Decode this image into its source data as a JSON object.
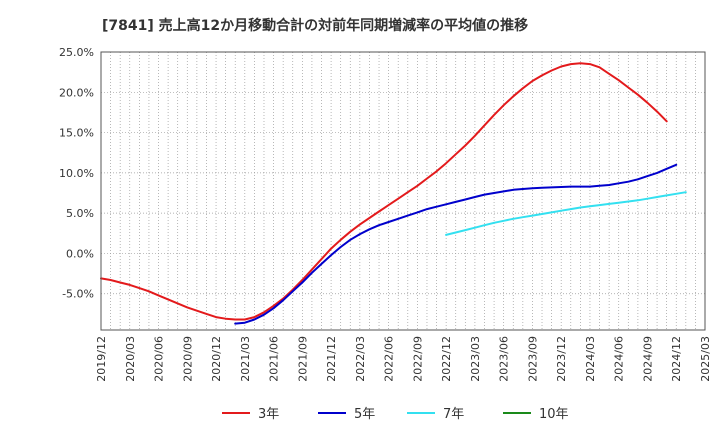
{
  "chart_data": {
    "type": "line",
    "title": "[7841]  売上高12か月移動合計の対前年同期増減率の平均値の推移",
    "xlabel": "",
    "ylabel": "",
    "ylim": [
      -9.5,
      25.0
    ],
    "y_ticks": [
      {
        "value": 25,
        "label": "25.0%"
      },
      {
        "value": 20,
        "label": "20.0%"
      },
      {
        "value": 15,
        "label": "15.0%"
      },
      {
        "value": 10,
        "label": "10.0%"
      },
      {
        "value": 5,
        "label": "5.0%"
      },
      {
        "value": 0,
        "label": "0.0%"
      },
      {
        "value": -5,
        "label": "-5.0%"
      }
    ],
    "x_ticks": [
      "2019/12",
      "2020/03",
      "2020/06",
      "2020/09",
      "2020/12",
      "2021/03",
      "2021/06",
      "2021/09",
      "2021/12",
      "2022/03",
      "2022/06",
      "2022/09",
      "2022/12",
      "2023/03",
      "2023/06",
      "2023/09",
      "2023/12",
      "2024/03",
      "2024/06",
      "2024/09",
      "2024/12",
      "2025/03"
    ],
    "grid": true,
    "legend_position": "bottom",
    "series": [
      {
        "name": "3年",
        "color": "#e31a1c",
        "points": [
          [
            "2019/12",
            -3.1
          ],
          [
            "2020/01",
            -3.3
          ],
          [
            "2020/02",
            -3.6
          ],
          [
            "2020/03",
            -3.9
          ],
          [
            "2020/04",
            -4.3
          ],
          [
            "2020/05",
            -4.7
          ],
          [
            "2020/06",
            -5.2
          ],
          [
            "2020/07",
            -5.7
          ],
          [
            "2020/08",
            -6.2
          ],
          [
            "2020/09",
            -6.7
          ],
          [
            "2020/10",
            -7.1
          ],
          [
            "2020/11",
            -7.5
          ],
          [
            "2020/12",
            -7.9
          ],
          [
            "2021/01",
            -8.1
          ],
          [
            "2021/02",
            -8.2
          ],
          [
            "2021/03",
            -8.2
          ],
          [
            "2021/04",
            -7.9
          ],
          [
            "2021/05",
            -7.3
          ],
          [
            "2021/06",
            -6.5
          ],
          [
            "2021/07",
            -5.6
          ],
          [
            "2021/08",
            -4.5
          ],
          [
            "2021/09",
            -3.3
          ],
          [
            "2021/10",
            -2.0
          ],
          [
            "2021/11",
            -0.7
          ],
          [
            "2021/12",
            0.6
          ],
          [
            "2022/01",
            1.7
          ],
          [
            "2022/02",
            2.7
          ],
          [
            "2022/03",
            3.6
          ],
          [
            "2022/04",
            4.4
          ],
          [
            "2022/05",
            5.2
          ],
          [
            "2022/06",
            6.0
          ],
          [
            "2022/07",
            6.8
          ],
          [
            "2022/08",
            7.6
          ],
          [
            "2022/09",
            8.4
          ],
          [
            "2022/10",
            9.3
          ],
          [
            "2022/11",
            10.2
          ],
          [
            "2022/12",
            11.2
          ],
          [
            "2023/01",
            12.3
          ],
          [
            "2023/02",
            13.4
          ],
          [
            "2023/03",
            14.6
          ],
          [
            "2023/04",
            15.9
          ],
          [
            "2023/05",
            17.2
          ],
          [
            "2023/06",
            18.4
          ],
          [
            "2023/07",
            19.5
          ],
          [
            "2023/08",
            20.5
          ],
          [
            "2023/09",
            21.4
          ],
          [
            "2023/10",
            22.1
          ],
          [
            "2023/11",
            22.7
          ],
          [
            "2023/12",
            23.2
          ],
          [
            "2024/01",
            23.5
          ],
          [
            "2024/02",
            23.6
          ],
          [
            "2024/03",
            23.5
          ],
          [
            "2024/04",
            23.1
          ],
          [
            "2024/05",
            22.3
          ],
          [
            "2024/06",
            21.5
          ],
          [
            "2024/07",
            20.6
          ],
          [
            "2024/08",
            19.7
          ],
          [
            "2024/09",
            18.7
          ],
          [
            "2024/10",
            17.6
          ],
          [
            "2024/11",
            16.4
          ]
        ]
      },
      {
        "name": "5年",
        "color": "#0000cc",
        "points": [
          [
            "2021/02",
            -8.7
          ],
          [
            "2021/03",
            -8.6
          ],
          [
            "2021/04",
            -8.2
          ],
          [
            "2021/05",
            -7.6
          ],
          [
            "2021/06",
            -6.8
          ],
          [
            "2021/07",
            -5.8
          ],
          [
            "2021/08",
            -4.7
          ],
          [
            "2021/09",
            -3.6
          ],
          [
            "2021/10",
            -2.4
          ],
          [
            "2021/11",
            -1.3
          ],
          [
            "2021/12",
            -0.2
          ],
          [
            "2022/01",
            0.8
          ],
          [
            "2022/02",
            1.7
          ],
          [
            "2022/03",
            2.4
          ],
          [
            "2022/04",
            3.0
          ],
          [
            "2022/05",
            3.5
          ],
          [
            "2022/06",
            3.9
          ],
          [
            "2022/07",
            4.3
          ],
          [
            "2022/08",
            4.7
          ],
          [
            "2022/09",
            5.1
          ],
          [
            "2022/10",
            5.5
          ],
          [
            "2022/11",
            5.8
          ],
          [
            "2022/12",
            6.1
          ],
          [
            "2023/01",
            6.4
          ],
          [
            "2023/02",
            6.7
          ],
          [
            "2023/03",
            7.0
          ],
          [
            "2023/04",
            7.3
          ],
          [
            "2023/05",
            7.5
          ],
          [
            "2023/06",
            7.7
          ],
          [
            "2023/07",
            7.9
          ],
          [
            "2023/08",
            8.0
          ],
          [
            "2023/09",
            8.1
          ],
          [
            "2023/10",
            8.15
          ],
          [
            "2023/11",
            8.2
          ],
          [
            "2023/12",
            8.25
          ],
          [
            "2024/01",
            8.3
          ],
          [
            "2024/02",
            8.3
          ],
          [
            "2024/03",
            8.3
          ],
          [
            "2024/04",
            8.4
          ],
          [
            "2024/05",
            8.5
          ],
          [
            "2024/06",
            8.7
          ],
          [
            "2024/07",
            8.9
          ],
          [
            "2024/08",
            9.2
          ],
          [
            "2024/09",
            9.6
          ],
          [
            "2024/10",
            10.0
          ],
          [
            "2024/11",
            10.5
          ],
          [
            "2024/12",
            11.0
          ]
        ]
      },
      {
        "name": "7年",
        "color": "#33e0f0",
        "points": [
          [
            "2022/12",
            2.3
          ],
          [
            "2023/01",
            2.6
          ],
          [
            "2023/02",
            2.9
          ],
          [
            "2023/03",
            3.2
          ],
          [
            "2023/04",
            3.5
          ],
          [
            "2023/05",
            3.8
          ],
          [
            "2023/06",
            4.05
          ],
          [
            "2023/07",
            4.3
          ],
          [
            "2023/08",
            4.5
          ],
          [
            "2023/09",
            4.7
          ],
          [
            "2023/10",
            4.9
          ],
          [
            "2023/11",
            5.1
          ],
          [
            "2023/12",
            5.3
          ],
          [
            "2024/01",
            5.5
          ],
          [
            "2024/02",
            5.7
          ],
          [
            "2024/03",
            5.85
          ],
          [
            "2024/04",
            6.0
          ],
          [
            "2024/05",
            6.15
          ],
          [
            "2024/06",
            6.3
          ],
          [
            "2024/07",
            6.45
          ],
          [
            "2024/08",
            6.6
          ],
          [
            "2024/09",
            6.8
          ],
          [
            "2024/10",
            7.0
          ],
          [
            "2024/11",
            7.2
          ],
          [
            "2024/12",
            7.4
          ],
          [
            "2025/01",
            7.6
          ]
        ]
      },
      {
        "name": "10年",
        "color": "#1a8a1a",
        "points": []
      }
    ]
  }
}
